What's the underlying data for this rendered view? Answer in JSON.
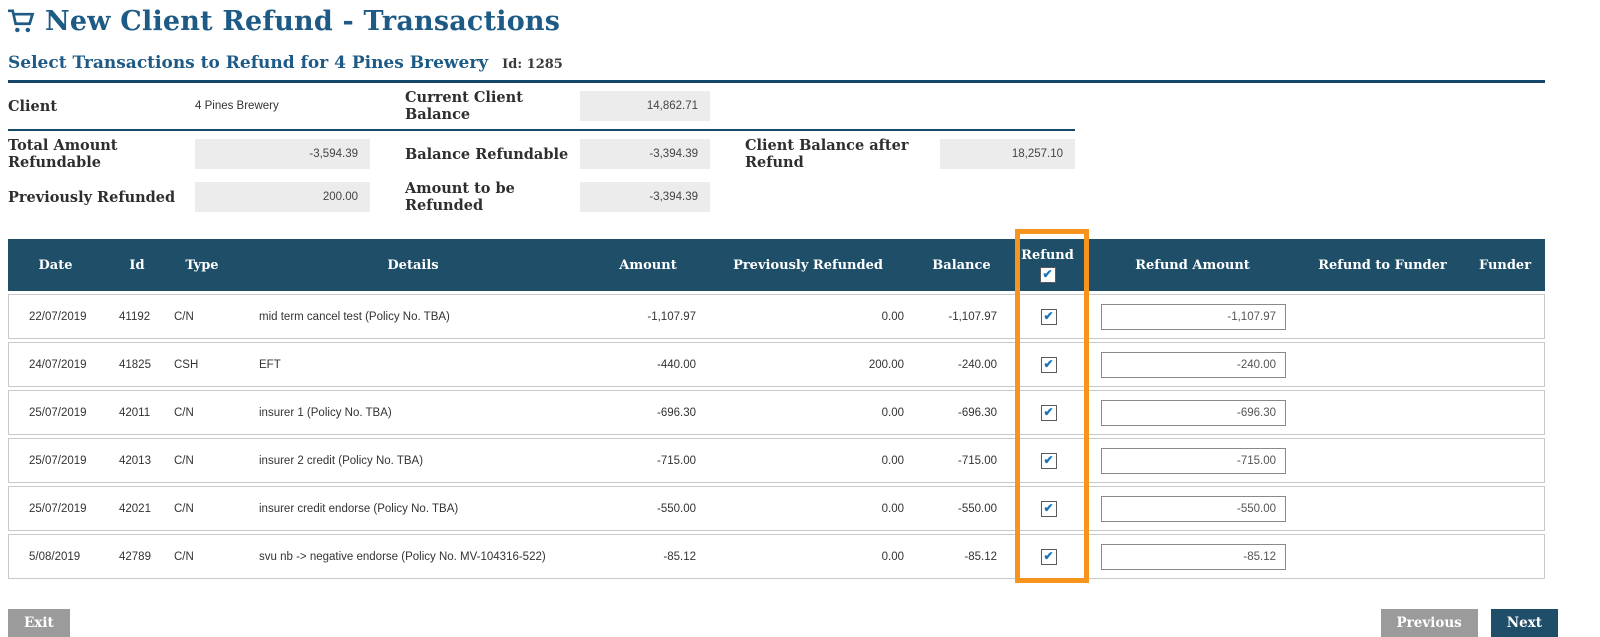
{
  "page": {
    "title": "New Client Refund - Transactions",
    "subtitle": "Select Transactions to Refund for 4 Pines Brewery",
    "client_id": "Id: 1285"
  },
  "summary": {
    "client_label": "Client",
    "client_value": "4 Pines Brewery",
    "current_client_balance_label": "Current Client Balance",
    "current_client_balance": "14,862.71",
    "total_amount_refundable_label": "Total Amount Refundable",
    "total_amount_refundable": "-3,594.39",
    "balance_refundable_label": "Balance Refundable",
    "balance_refundable": "-3,394.39",
    "client_balance_after_refund_label": "Client Balance after Refund",
    "client_balance_after_refund": "18,257.10",
    "previously_refunded_label": "Previously Refunded",
    "previously_refunded": "200.00",
    "amount_to_be_refunded_label": "Amount to be Refunded",
    "amount_to_be_refunded": "-3,394.39"
  },
  "table": {
    "headers": {
      "date": "Date",
      "id": "Id",
      "type": "Type",
      "details": "Details",
      "amount": "Amount",
      "previously_refunded": "Previously Refunded",
      "balance": "Balance",
      "refund": "Refund",
      "refund_amount": "Refund Amount",
      "refund_to_funder": "Refund to Funder",
      "funder": "Funder"
    },
    "select_all_checked": true,
    "rows": [
      {
        "date": "22/07/2019",
        "id": "41192",
        "type": "C/N",
        "details": "mid term cancel test (Policy No. TBA)",
        "amount": "-1,107.97",
        "previously_refunded": "0.00",
        "balance": "-1,107.97",
        "refund_checked": true,
        "refund_amount": "-1,107.97",
        "refund_to_funder": "",
        "funder": ""
      },
      {
        "date": "24/07/2019",
        "id": "41825",
        "type": "CSH",
        "details": "EFT",
        "amount": "-440.00",
        "previously_refunded": "200.00",
        "balance": "-240.00",
        "refund_checked": true,
        "refund_amount": "-240.00",
        "refund_to_funder": "",
        "funder": ""
      },
      {
        "date": "25/07/2019",
        "id": "42011",
        "type": "C/N",
        "details": "insurer 1 (Policy No. TBA)",
        "amount": "-696.30",
        "previously_refunded": "0.00",
        "balance": "-696.30",
        "refund_checked": true,
        "refund_amount": "-696.30",
        "refund_to_funder": "",
        "funder": ""
      },
      {
        "date": "25/07/2019",
        "id": "42013",
        "type": "C/N",
        "details": "insurer 2 credit (Policy No. TBA)",
        "amount": "-715.00",
        "previously_refunded": "0.00",
        "balance": "-715.00",
        "refund_checked": true,
        "refund_amount": "-715.00",
        "refund_to_funder": "",
        "funder": ""
      },
      {
        "date": "25/07/2019",
        "id": "42021",
        "type": "C/N",
        "details": "insurer credit endorse (Policy No. TBA)",
        "amount": "-550.00",
        "previously_refunded": "0.00",
        "balance": "-550.00",
        "refund_checked": true,
        "refund_amount": "-550.00",
        "refund_to_funder": "",
        "funder": ""
      },
      {
        "date": "5/08/2019",
        "id": "42789",
        "type": "C/N",
        "details": "svu nb -> negative endorse (Policy No. MV-104316-522)",
        "amount": "-85.12",
        "previously_refunded": "0.00",
        "balance": "-85.12",
        "refund_checked": true,
        "refund_amount": "-85.12",
        "refund_to_funder": "",
        "funder": ""
      }
    ]
  },
  "footer": {
    "exit_label": "Exit",
    "previous_label": "Previous",
    "next_label": "Next"
  },
  "icons": {
    "title_icon": "shopping-cart-icon",
    "check_glyph": "✔"
  },
  "colors": {
    "heading_blue": "#1d5a85",
    "table_header_blue": "#1e4e68",
    "divider_blue": "#16486b",
    "highlight_orange": "#f7941e",
    "button_gray": "#9b9b9b",
    "field_gray": "#ececec",
    "checkbox_blue": "#1b75bc"
  }
}
